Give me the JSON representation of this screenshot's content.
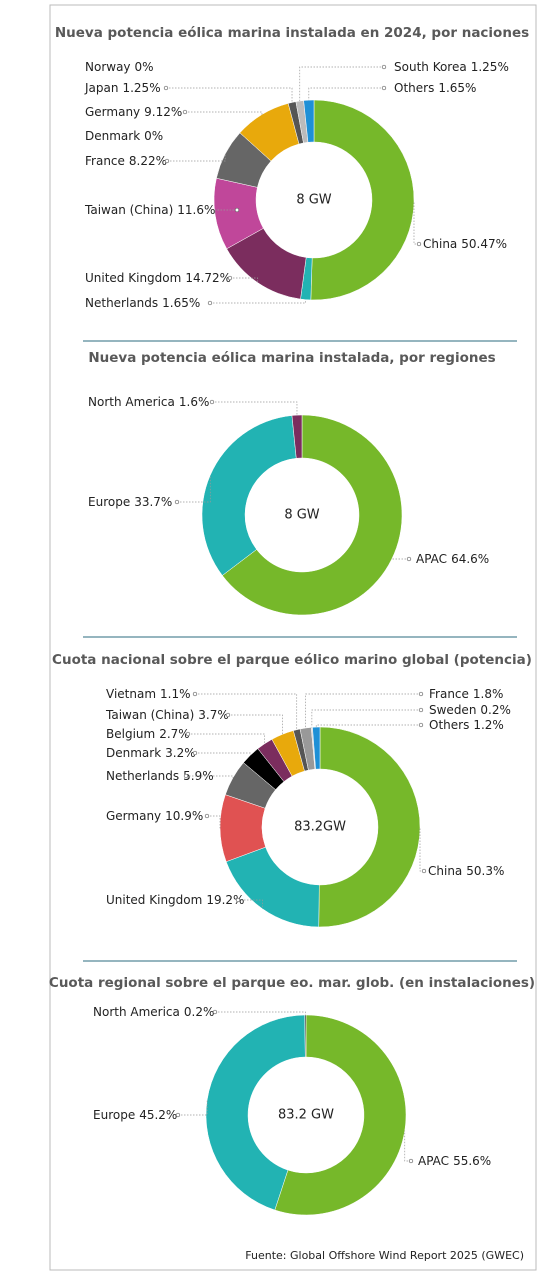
{
  "chart_data": [
    {
      "type": "pie",
      "title": "Nueva potencia eólica marina instalada en 2024, por naciones",
      "center_label": "8 GW",
      "categories": [
        "China",
        "Netherlands",
        "United Kingdom",
        "Taiwan (China)",
        "France",
        "Denmark",
        "Germany",
        "Norway",
        "Japan",
        "South Korea",
        "Others"
      ],
      "values": [
        50.47,
        1.65,
        14.72,
        11.6,
        8.22,
        0,
        9.12,
        0,
        1.25,
        1.25,
        1.65
      ],
      "value_labels": [
        "50.47%",
        "1.65%",
        "14.72%",
        "11.6%",
        "8.22%",
        "0%",
        "9.12%",
        "0%",
        "1.25%",
        "1.25%",
        "1.65%"
      ],
      "colors": [
        "#76b82a",
        "#22b3b3",
        "#7b2d5e",
        "#c0479a",
        "#666666",
        "#333333",
        "#e8a90c",
        "#444444",
        "#555555",
        "#bbbbbb",
        "#1e90d6"
      ]
    },
    {
      "type": "pie",
      "title": "Nueva potencia eólica marina instalada, por regiones",
      "center_label": "8 GW",
      "categories": [
        "APAC",
        "Europe",
        "North America"
      ],
      "values": [
        64.6,
        33.7,
        1.6
      ],
      "value_labels": [
        "64.6%",
        "33.7%",
        "1.6%"
      ],
      "colors": [
        "#76b82a",
        "#22b3b3",
        "#7b2d5e"
      ]
    },
    {
      "type": "pie",
      "title": "Cuota nacional sobre el parque eólico marino global (potencia)",
      "center_label": "83.2GW",
      "categories": [
        "China",
        "United Kingdom",
        "Germany",
        "Netherlands",
        "Denmark",
        "Belgium",
        "Taiwan (China)",
        "Vietnam",
        "France",
        "Sweden",
        "Others"
      ],
      "values": [
        50.3,
        19.2,
        10.9,
        5.9,
        3.2,
        2.7,
        3.7,
        1.1,
        1.8,
        0.2,
        1.2
      ],
      "value_labels": [
        "50.3%",
        "19.2%",
        "10.9%",
        "5.9%",
        "3.2%",
        "2.7%",
        "3.7%",
        "1.1%",
        "1.8%",
        "0.2%",
        "1.2%"
      ],
      "colors": [
        "#76b82a",
        "#22b3b3",
        "#e05252",
        "#666666",
        "#000000",
        "#7b2d5e",
        "#e8a90c",
        "#555555",
        "#999999",
        "#cccccc",
        "#1e90d6"
      ]
    },
    {
      "type": "pie",
      "title": "Cuota regional sobre el parque eo. mar. glob. (en instalaciones)",
      "center_label": "83.2 GW",
      "categories": [
        "APAC",
        "Europe",
        "North America"
      ],
      "values": [
        55.6,
        45.2,
        0.2
      ],
      "value_labels": [
        "55.6%",
        "45.2%",
        "0.2%"
      ],
      "colors": [
        "#76b82a",
        "#22b3b3",
        "#333333"
      ]
    }
  ],
  "source": "Fuente: Global Offshore Wind Report 2025 (GWEC)"
}
